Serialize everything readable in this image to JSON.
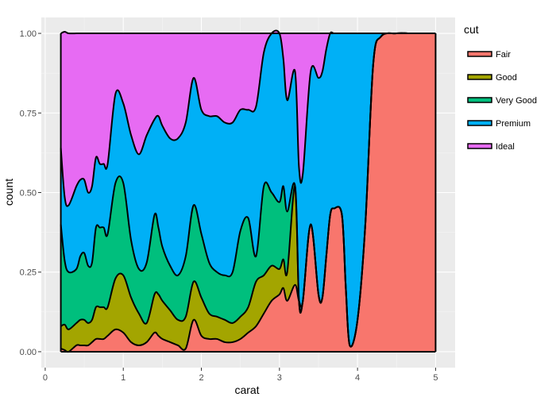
{
  "chart_data": {
    "type": "area",
    "stacking": "fill",
    "xlabel": "carat",
    "ylabel": "count",
    "xlim": [
      -0.05,
      5.25
    ],
    "ylim": [
      -0.05,
      1.05
    ],
    "x_ticks": [
      0,
      1,
      2,
      3,
      4,
      5
    ],
    "x_tick_labels": [
      "0",
      "1",
      "2",
      "3",
      "4",
      "5"
    ],
    "y_ticks": [
      0,
      0.25,
      0.5,
      0.75,
      1.0
    ],
    "y_tick_labels": [
      "0.00",
      "0.25",
      "0.50",
      "0.75",
      "1.00"
    ],
    "grid": true,
    "panel_background": "#EBEBEB",
    "legend": {
      "title": "cut",
      "placement": "right"
    },
    "outline_color": "#000000",
    "x": [
      0.2,
      0.25,
      0.3,
      0.4,
      0.45,
      0.5,
      0.55,
      0.6,
      0.65,
      0.7,
      0.75,
      0.8,
      0.9,
      1.0,
      1.1,
      1.2,
      1.3,
      1.4,
      1.45,
      1.5,
      1.6,
      1.7,
      1.8,
      1.9,
      2.0,
      2.1,
      2.2,
      2.3,
      2.4,
      2.5,
      2.6,
      2.7,
      2.8,
      2.9,
      3.0,
      3.05,
      3.1,
      3.2,
      3.25,
      3.3,
      3.4,
      3.5,
      3.55,
      3.6,
      3.65,
      3.7,
      3.8,
      3.85,
      3.9,
      4.0,
      4.1,
      4.2,
      4.3,
      4.5,
      4.7,
      5.0
    ],
    "series": [
      {
        "name": "Fair",
        "color": "#F8766D",
        "values": [
          0.01,
          0.005,
          0.0,
          0.02,
          0.02,
          0.02,
          0.02,
          0.03,
          0.04,
          0.04,
          0.04,
          0.05,
          0.07,
          0.06,
          0.03,
          0.02,
          0.03,
          0.06,
          0.05,
          0.04,
          0.03,
          0.02,
          0.01,
          0.1,
          0.05,
          0.04,
          0.04,
          0.03,
          0.03,
          0.04,
          0.06,
          0.08,
          0.12,
          0.16,
          0.18,
          0.2,
          0.16,
          0.21,
          0.16,
          0.16,
          0.4,
          0.18,
          0.17,
          0.3,
          0.43,
          0.45,
          0.43,
          0.2,
          0.02,
          0.1,
          0.4,
          0.9,
          0.99,
          1.0,
          1.0,
          1.0
        ]
      },
      {
        "name": "Good",
        "color": "#A3A500",
        "values": [
          0.07,
          0.08,
          0.07,
          0.07,
          0.08,
          0.08,
          0.07,
          0.07,
          0.1,
          0.1,
          0.1,
          0.09,
          0.16,
          0.18,
          0.14,
          0.1,
          0.06,
          0.12,
          0.13,
          0.12,
          0.1,
          0.08,
          0.1,
          0.12,
          0.12,
          0.08,
          0.07,
          0.07,
          0.06,
          0.07,
          0.08,
          0.14,
          0.12,
          0.11,
          0.08,
          0.09,
          0.09,
          0.31,
          0.0,
          0.0,
          0.0,
          0.0,
          0.0,
          0.0,
          0.0,
          0.0,
          0.0,
          0.0,
          0.0,
          0.0,
          0.0,
          0.0,
          0.0,
          0.0,
          0.0,
          0.0
        ]
      },
      {
        "name": "Very Good",
        "color": "#00BF7D",
        "values": [
          0.32,
          0.2,
          0.18,
          0.17,
          0.2,
          0.21,
          0.18,
          0.18,
          0.25,
          0.25,
          0.25,
          0.23,
          0.3,
          0.29,
          0.18,
          0.14,
          0.19,
          0.25,
          0.21,
          0.17,
          0.14,
          0.14,
          0.19,
          0.24,
          0.2,
          0.16,
          0.14,
          0.14,
          0.16,
          0.27,
          0.28,
          0.08,
          0.28,
          0.23,
          0.21,
          0.23,
          0.19,
          0.0,
          0.0,
          0.0,
          0.0,
          0.0,
          0.0,
          0.0,
          0.0,
          0.0,
          0.0,
          0.0,
          0.0,
          0.0,
          0.0,
          0.0,
          0.0,
          0.0,
          0.0,
          0.0
        ]
      },
      {
        "name": "Premium",
        "color": "#00B0F6",
        "values": [
          0.24,
          0.2,
          0.21,
          0.26,
          0.24,
          0.23,
          0.23,
          0.24,
          0.22,
          0.2,
          0.2,
          0.22,
          0.28,
          0.25,
          0.33,
          0.36,
          0.4,
          0.3,
          0.35,
          0.38,
          0.4,
          0.43,
          0.42,
          0.4,
          0.39,
          0.46,
          0.49,
          0.48,
          0.47,
          0.38,
          0.34,
          0.47,
          0.42,
          0.5,
          0.53,
          0.4,
          0.35,
          0.36,
          0.42,
          0.4,
          0.48,
          0.68,
          0.71,
          0.65,
          0.57,
          0.55,
          0.57,
          0.8,
          0.98,
          0.9,
          0.6,
          0.1,
          0.01,
          0.0,
          0.0,
          0.0
        ]
      },
      {
        "name": "Ideal",
        "color": "#E76BF3",
        "values": [
          0.36,
          0.52,
          0.54,
          0.48,
          0.46,
          0.46,
          0.5,
          0.48,
          0.39,
          0.41,
          0.41,
          0.41,
          0.19,
          0.22,
          0.32,
          0.38,
          0.32,
          0.27,
          0.26,
          0.29,
          0.33,
          0.33,
          0.28,
          0.14,
          0.24,
          0.26,
          0.26,
          0.28,
          0.28,
          0.24,
          0.24,
          0.23,
          0.06,
          0.0,
          0.0,
          0.08,
          0.21,
          0.12,
          0.42,
          0.44,
          0.12,
          0.14,
          0.12,
          0.05,
          0.0,
          0.0,
          0.0,
          0.0,
          0.0,
          0.0,
          0.0,
          0.0,
          0.0,
          0.0,
          0.0,
          0.0
        ]
      }
    ]
  }
}
